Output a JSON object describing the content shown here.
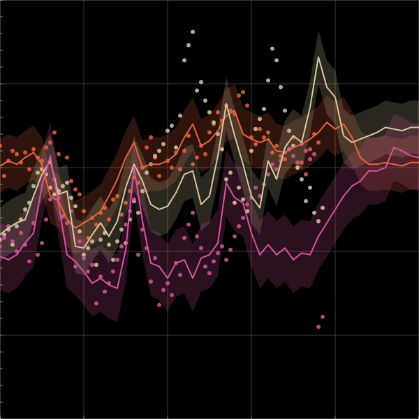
{
  "chart_data": {
    "type": "line",
    "title": "",
    "xlabel": "",
    "ylabel": "",
    "xlim": [
      0,
      100
    ],
    "ylim": [
      -10,
      15
    ],
    "grid": true,
    "legend": "none",
    "background": "#000000",
    "grid_color": "#3a3a3a",
    "x": [
      0,
      2,
      4,
      6,
      8,
      10,
      12,
      14,
      16,
      18,
      20,
      22,
      24,
      26,
      28,
      30,
      32,
      34,
      36,
      38,
      40,
      42,
      44,
      46,
      48,
      50,
      52,
      54,
      56,
      58,
      60,
      62,
      64,
      66,
      68,
      70,
      72,
      74,
      76,
      78,
      80,
      82,
      84,
      86,
      88,
      90,
      92,
      94,
      96,
      98,
      100
    ],
    "series": [
      {
        "color": "#e8643c",
        "line": [
          5.1,
          5.4,
          5.2,
          5.6,
          5.9,
          5.2,
          3.3,
          3.0,
          1.9,
          1.4,
          1.7,
          2.0,
          2.4,
          3.3,
          4.3,
          5.6,
          6.5,
          5.0,
          5.2,
          5.2,
          5.4,
          5.8,
          6.8,
          7.6,
          6.3,
          6.6,
          7.2,
          8.1,
          8.4,
          7.0,
          6.7,
          6.5,
          6.7,
          6.0,
          5.9,
          6.2,
          6.4,
          6.7,
          7.1,
          7.7,
          7.3,
          7.6,
          6.8,
          5.6,
          5.2,
          5.2,
          5.3,
          5.2,
          5.1,
          5.3,
          5.3
        ],
        "band": 1.6,
        "points": [
          [
            0,
            6.3
          ],
          [
            1,
            4.5
          ],
          [
            2,
            5.4
          ],
          [
            3,
            6.0
          ],
          [
            4,
            5.8
          ],
          [
            5,
            5.3
          ],
          [
            6,
            5.9
          ],
          [
            7,
            4.9
          ],
          [
            8,
            6.1
          ],
          [
            9,
            5.6
          ],
          [
            10,
            5.4
          ],
          [
            11,
            6.2
          ],
          [
            12,
            6.5
          ],
          [
            13,
            7.1
          ],
          [
            14,
            5.8
          ],
          [
            16,
            5.6
          ],
          [
            17,
            4.2
          ],
          [
            18,
            3.7
          ],
          [
            19,
            3.4
          ],
          [
            20,
            2.4
          ],
          [
            21,
            0.8
          ],
          [
            22,
            2.0
          ],
          [
            23,
            1.6
          ],
          [
            24,
            2.3
          ],
          [
            25,
            2.6
          ],
          [
            26,
            1.9
          ],
          [
            27,
            3.1
          ],
          [
            28,
            3.3
          ],
          [
            29,
            2.2
          ],
          [
            30,
            2.9
          ],
          [
            31,
            3.6
          ],
          [
            32,
            4.4
          ],
          [
            33,
            4.1
          ],
          [
            34,
            5.0
          ],
          [
            35,
            6.2
          ],
          [
            36,
            6.8
          ],
          [
            37,
            5.6
          ],
          [
            38,
            4.5
          ],
          [
            40,
            5.4
          ],
          [
            41,
            5.0
          ],
          [
            42,
            5.9
          ],
          [
            43,
            4.9
          ],
          [
            44,
            6.0
          ],
          [
            45,
            6.9
          ],
          [
            46,
            5.2
          ],
          [
            47,
            5.6
          ],
          [
            48,
            6.3
          ],
          [
            49,
            5.8
          ],
          [
            50,
            7.1
          ],
          [
            51,
            7.6
          ],
          [
            52,
            8.3
          ],
          [
            53,
            7.8
          ],
          [
            54,
            8.7
          ],
          [
            55,
            8.4
          ],
          [
            56,
            8.2
          ],
          [
            57,
            9.3
          ],
          [
            58,
            9.5
          ],
          [
            59,
            8.7
          ],
          [
            60,
            6.8
          ],
          [
            61,
            6.4
          ],
          [
            62,
            7.3
          ],
          [
            63,
            6.8
          ],
          [
            64,
            7.1
          ],
          [
            65,
            5.9
          ],
          [
            66,
            6.3
          ],
          [
            67,
            5.7
          ],
          [
            68,
            5.5
          ],
          [
            69,
            6.1
          ],
          [
            70,
            6.8
          ],
          [
            71,
            5.0
          ],
          [
            72,
            5.3
          ],
          [
            73,
            4.6
          ],
          [
            74,
            6.1
          ],
          [
            75,
            7.0
          ],
          [
            76,
            6.5
          ]
        ]
      },
      {
        "color": "#d6c8a0",
        "line": [
          1.0,
          1.4,
          1.7,
          1.9,
          3.3,
          4.6,
          5.4,
          3.4,
          3.6,
          0.3,
          0.2,
          1.0,
          1.7,
          0.9,
          1.8,
          3.8,
          5.2,
          4.2,
          2.8,
          2.5,
          2.7,
          3.5,
          4.6,
          4.8,
          2.8,
          3.3,
          5.7,
          8.8,
          6.9,
          5.2,
          3.3,
          2.6,
          5.4,
          4.3,
          6.2,
          6.9,
          6.5,
          8.6,
          11.6,
          9.8,
          9.2,
          6.9,
          6.5,
          6.7,
          6.9,
          7.1,
          7.4,
          7.3,
          7.2,
          7.4,
          7.4
        ],
        "band": 1.6,
        "points": [
          [
            0,
            0.7
          ],
          [
            1,
            1.0
          ],
          [
            2,
            1.3
          ],
          [
            3,
            0.4
          ],
          [
            4,
            1.5
          ],
          [
            5,
            1.9
          ],
          [
            6,
            2.5
          ],
          [
            7,
            2.9
          ],
          [
            8,
            3.9
          ],
          [
            9,
            4.7
          ],
          [
            10,
            4.9
          ],
          [
            11,
            4.6
          ],
          [
            12,
            3.8
          ],
          [
            13,
            3.4
          ],
          [
            14,
            3.6
          ],
          [
            15,
            3.9
          ],
          [
            16,
            4.1
          ],
          [
            17,
            3.2
          ],
          [
            18,
            2.7
          ],
          [
            19,
            1.2
          ],
          [
            20,
            -0.2
          ],
          [
            21,
            0.2
          ],
          [
            22,
            0.6
          ],
          [
            23,
            -0.8
          ],
          [
            24,
            0.7
          ],
          [
            25,
            1.1
          ],
          [
            26,
            0.4
          ],
          [
            27,
            -0.5
          ],
          [
            28,
            0.6
          ],
          [
            29,
            1.3
          ],
          [
            30,
            0.5
          ],
          [
            31,
            1.9
          ],
          [
            32,
            3.0
          ],
          [
            33,
            2.3
          ],
          [
            34,
            3.6
          ],
          [
            35,
            4.7
          ],
          [
            36,
            5.2
          ],
          [
            37,
            5.7
          ],
          [
            38,
            6.0
          ],
          [
            39,
            6.4
          ],
          [
            40,
            7.2
          ],
          [
            41,
            7.5
          ],
          [
            42,
            6.2
          ],
          [
            43,
            8.1
          ],
          [
            44,
            11.4
          ],
          [
            45,
            12.3
          ],
          [
            46,
            13.1
          ],
          [
            47,
            9.6
          ],
          [
            48,
            10.1
          ],
          [
            49,
            9.0
          ],
          [
            50,
            8.3
          ],
          [
            51,
            7.7
          ],
          [
            52,
            7.0
          ],
          [
            53,
            6.1
          ],
          [
            54,
            4.3
          ],
          [
            55,
            4.7
          ],
          [
            56,
            2.9
          ],
          [
            57,
            3.8
          ],
          [
            58,
            3.1
          ],
          [
            59,
            2.4
          ],
          [
            60,
            6.0
          ],
          [
            61,
            7.3
          ],
          [
            62,
            7.9
          ],
          [
            63,
            8.5
          ],
          [
            64,
            10.2
          ],
          [
            65,
            12.1
          ],
          [
            66,
            11.4
          ],
          [
            67,
            9.8
          ],
          [
            68,
            8.4
          ],
          [
            69,
            7.2
          ],
          [
            70,
            6.3
          ],
          [
            71,
            5.0
          ],
          [
            72,
            4.3
          ],
          [
            73,
            3.0
          ],
          [
            74,
            3.8
          ],
          [
            75,
            2.3
          ],
          [
            76,
            1.8
          ],
          [
            77,
            2.6
          ]
        ]
      },
      {
        "color": "#d6559a",
        "line": [
          -0.3,
          -0.5,
          -0.2,
          0.5,
          1.1,
          3.9,
          5.7,
          2.8,
          -0.2,
          -0.6,
          -1.2,
          -1.9,
          -1.6,
          -2.0,
          -2.2,
          0.1,
          5.0,
          1.8,
          -0.7,
          -0.9,
          -1.6,
          -0.7,
          -0.5,
          -1.6,
          -0.4,
          -0.2,
          0.5,
          4.1,
          3.2,
          2.9,
          1.1,
          -0.2,
          0.4,
          -0.2,
          0.2,
          -0.5,
          -0.1,
          -0.2,
          0.9,
          1.7,
          2.5,
          3.3,
          3.9,
          4.2,
          4.8,
          4.8,
          5.0,
          6.2,
          6.0,
          5.7,
          5.6
        ],
        "band": 2.0,
        "points": [
          [
            0,
            0.3
          ],
          [
            1,
            0.8
          ],
          [
            2,
            1.5
          ],
          [
            3,
            0.6
          ],
          [
            4,
            0.0
          ],
          [
            5,
            1.1
          ],
          [
            6,
            0.4
          ],
          [
            7,
            -0.6
          ],
          [
            8,
            1.7
          ],
          [
            9,
            -0.2
          ],
          [
            10,
            0.5
          ],
          [
            11,
            1.9
          ],
          [
            12,
            3.1
          ],
          [
            13,
            4.3
          ],
          [
            14,
            3.2
          ],
          [
            15,
            2.1
          ],
          [
            16,
            1.7
          ],
          [
            17,
            2.4
          ],
          [
            18,
            -0.9
          ],
          [
            19,
            0.6
          ],
          [
            20,
            -0.4
          ],
          [
            21,
            -1.2
          ],
          [
            22,
            -0.8
          ],
          [
            23,
            -3.1
          ],
          [
            24,
            -1.5
          ],
          [
            25,
            -2.4
          ],
          [
            26,
            -1.9
          ],
          [
            27,
            -1.2
          ],
          [
            28,
            -0.5
          ],
          [
            29,
            0.3
          ],
          [
            30,
            1.6
          ],
          [
            31,
            2.4
          ],
          [
            32,
            3.1
          ],
          [
            33,
            -0.2
          ],
          [
            34,
            1.3
          ],
          [
            35,
            0.2
          ],
          [
            36,
            -1.8
          ],
          [
            37,
            -0.4
          ],
          [
            38,
            -3.2
          ],
          [
            39,
            -2.3
          ],
          [
            40,
            -1.9
          ],
          [
            41,
            -2.6
          ],
          [
            42,
            -0.7
          ],
          [
            43,
            -1.4
          ],
          [
            44,
            0.8
          ],
          [
            45,
            1.6
          ],
          [
            46,
            2.3
          ],
          [
            47,
            0.9
          ],
          [
            48,
            0.2
          ],
          [
            49,
            -0.9
          ],
          [
            50,
            -1.3
          ],
          [
            51,
            -0.6
          ],
          [
            52,
            -0.1
          ],
          [
            53,
            0.3
          ],
          [
            54,
            -0.5
          ],
          [
            55,
            0.1
          ],
          [
            56,
            0.9
          ],
          [
            57,
            1.5
          ],
          [
            58,
            2.0
          ],
          [
            59,
            2.8
          ],
          [
            60,
            3.2
          ],
          [
            61,
            3.8
          ],
          [
            62,
            3.3
          ],
          [
            63,
            4.0
          ],
          [
            64,
            4.6
          ],
          [
            65,
            5.2
          ],
          [
            66,
            4.9
          ],
          [
            67,
            5.4
          ],
          [
            68,
            5.9
          ],
          [
            69,
            6.1
          ],
          [
            70,
            5.7
          ],
          [
            71,
            5.3
          ],
          [
            72,
            6.4
          ],
          [
            73,
            6.0
          ],
          [
            74,
            5.5
          ],
          [
            75,
            5.8
          ],
          [
            76,
            -4.5
          ],
          [
            77,
            -3.9
          ]
        ]
      }
    ]
  }
}
